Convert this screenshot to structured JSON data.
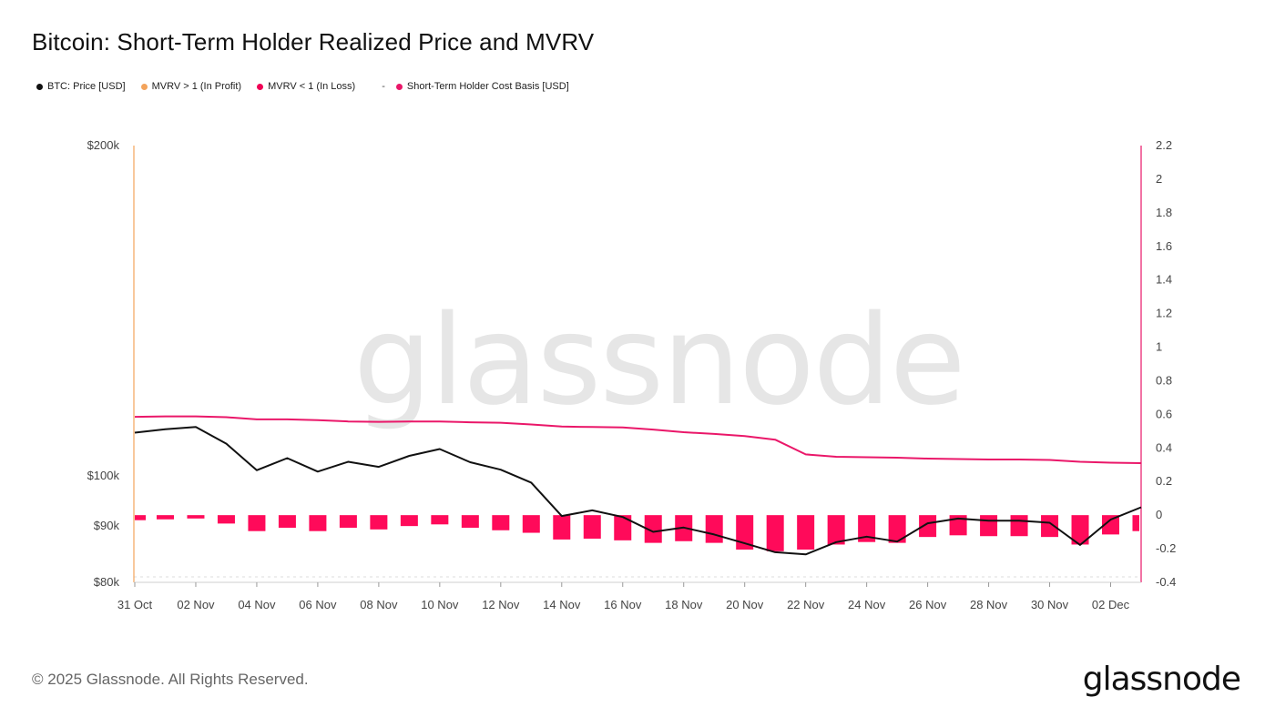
{
  "title": "Bitcoin: Short-Term Holder Realized Price and MVRV",
  "legend": [
    {
      "label": "BTC: Price [USD]",
      "color": "#111111"
    },
    {
      "label": "MVRV > 1 (In Profit)",
      "color": "#f3a35b"
    },
    {
      "label": "MVRV < 1 (In Loss)",
      "color": "#f00055"
    },
    {
      "label": "Short-Term Holder Cost Basis [USD]",
      "color": "#ea1769"
    }
  ],
  "legend_separator": "-",
  "watermark": "glassnode",
  "footer": "© 2025 Glassnode. All Rights Reserved.",
  "logo": "glassnode",
  "colors": {
    "price": "#111111",
    "cost_basis": "#ea1769",
    "mvrv_bar": "#ff0a5a",
    "left_axis": "#f3a35b",
    "right_axis": "#ea1769"
  },
  "chart_data": {
    "type": "line",
    "x": [
      "31 Oct",
      "01 Nov",
      "02 Nov",
      "03 Nov",
      "04 Nov",
      "05 Nov",
      "06 Nov",
      "07 Nov",
      "08 Nov",
      "09 Nov",
      "10 Nov",
      "11 Nov",
      "12 Nov",
      "13 Nov",
      "14 Nov",
      "15 Nov",
      "16 Nov",
      "17 Nov",
      "18 Nov",
      "19 Nov",
      "20 Nov",
      "21 Nov",
      "22 Nov",
      "23 Nov",
      "24 Nov",
      "25 Nov",
      "26 Nov",
      "27 Nov",
      "28 Nov",
      "29 Nov",
      "30 Nov",
      "01 Dec",
      "02 Dec",
      "03 Dec"
    ],
    "x_tick_labels": [
      "31 Oct",
      "02 Nov",
      "04 Nov",
      "06 Nov",
      "08 Nov",
      "10 Nov",
      "12 Nov",
      "14 Nov",
      "16 Nov",
      "18 Nov",
      "20 Nov",
      "22 Nov",
      "24 Nov",
      "26 Nov",
      "28 Nov",
      "30 Nov",
      "02 Dec"
    ],
    "y_left": {
      "scale": "log",
      "ticks": [
        "$80k",
        "$90k",
        "$100k",
        "$200k"
      ],
      "tick_values": [
        80000,
        90000,
        100000,
        200000
      ],
      "range": [
        80000,
        200000
      ]
    },
    "y_right": {
      "scale": "linear",
      "ticks": [
        "-0.4",
        "-0.2",
        "0",
        "0.2",
        "0.4",
        "0.6",
        "0.8",
        "1",
        "1.2",
        "1.4",
        "1.6",
        "1.8",
        "2",
        "2.2"
      ],
      "range": [
        -0.4,
        2.2
      ]
    },
    "series": [
      {
        "name": "BTC: Price [USD]",
        "axis": "left",
        "values": [
          109500,
          110300,
          110800,
          107000,
          101200,
          103800,
          100900,
          103000,
          101900,
          104300,
          105800,
          102900,
          101300,
          98600,
          91900,
          93000,
          91700,
          88900,
          89700,
          88400,
          86800,
          85200,
          84800,
          87000,
          88000,
          87100,
          90500,
          91400,
          91000,
          91000,
          90600,
          86500,
          91200,
          93600
        ]
      },
      {
        "name": "Short-Term Holder Cost Basis [USD]",
        "axis": "left",
        "values": [
          113200,
          113300,
          113300,
          113100,
          112600,
          112600,
          112400,
          112100,
          112000,
          112100,
          112100,
          111900,
          111800,
          111400,
          110900,
          110800,
          110700,
          110200,
          109600,
          109200,
          108700,
          107900,
          104600,
          104100,
          104000,
          103900,
          103700,
          103600,
          103500,
          103500,
          103400,
          103000,
          102800,
          102700
        ]
      },
      {
        "name": "MVRV",
        "axis": "right",
        "type": "bar",
        "values": [
          -0.03,
          -0.025,
          -0.02,
          -0.05,
          -0.095,
          -0.075,
          -0.095,
          -0.075,
          -0.085,
          -0.065,
          -0.055,
          -0.075,
          -0.09,
          -0.105,
          -0.145,
          -0.14,
          -0.15,
          -0.165,
          -0.155,
          -0.165,
          -0.205,
          -0.215,
          -0.205,
          -0.175,
          -0.16,
          -0.165,
          -0.13,
          -0.12,
          -0.125,
          -0.125,
          -0.13,
          -0.175,
          -0.115,
          -0.095
        ]
      }
    ]
  }
}
